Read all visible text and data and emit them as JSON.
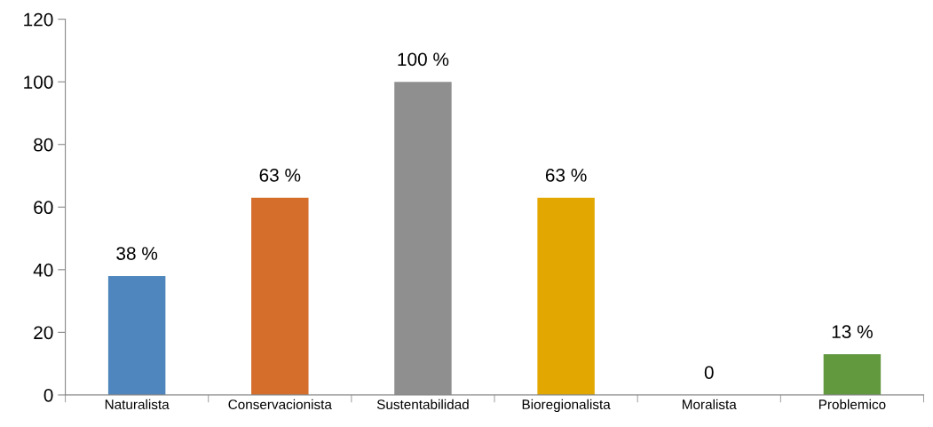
{
  "chart_data": {
    "type": "bar",
    "categories": [
      "Naturalista",
      "Conservacionista",
      "Sustentabilidad",
      "Bioregionalista",
      "Moralista",
      "Problemico"
    ],
    "values": [
      38,
      63,
      100,
      63,
      0,
      13
    ],
    "colors": [
      "#4f86bd",
      "#d56d2b",
      "#8f8f8f",
      "#e2a700",
      "#6a9a40",
      "#62983e"
    ],
    "value_labels": [
      "38 %",
      "63 %",
      "100 %",
      "63 %",
      "0",
      "13 %"
    ],
    "ylim": [
      0,
      120
    ],
    "yticks": [
      0,
      20,
      40,
      60,
      80,
      100,
      120
    ],
    "grid": false,
    "legend": false
  }
}
